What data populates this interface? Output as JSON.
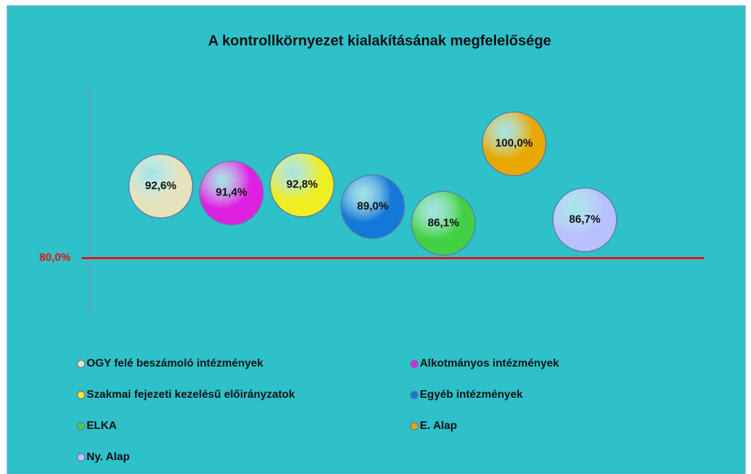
{
  "chart_data": {
    "type": "bubble",
    "title": "A kontrollkörnyezet kialakításának megfelelősége",
    "categories": [
      "OGY felé beszámoló intézmények",
      "Alkotmányos intézmények",
      "Szakmai fejezeti kezelésű előirányzatok",
      "Egyéb intézmények",
      "ELKA",
      "E. Alap",
      "Ny. Alap"
    ],
    "series": [
      {
        "name": "OGY felé beszámoló intézmények",
        "color": "#e6e2bc",
        "values": [
          92.6
        ],
        "value_labels": [
          "92,6%"
        ]
      },
      {
        "name": "Alkotmányos intézmények",
        "color": "#e020e0",
        "values": [
          91.4
        ],
        "value_labels": [
          "91,4%"
        ]
      },
      {
        "name": "Szakmai fejezeti kezelésű előirányzatok",
        "color": "#eeee22",
        "values": [
          92.8
        ],
        "value_labels": [
          "92,8%"
        ]
      },
      {
        "name": "Egyéb intézmények",
        "color": "#1478d8",
        "values": [
          89.0
        ],
        "value_labels": [
          "89,0%"
        ]
      },
      {
        "name": "ELKA",
        "color": "#44d044",
        "values": [
          86.1
        ],
        "value_labels": [
          "86,1%"
        ]
      },
      {
        "name": "E. Alap",
        "color": "#e8a800",
        "values": [
          100.0
        ],
        "value_labels": [
          "100,0%"
        ]
      },
      {
        "name": "Ny. Alap",
        "color": "#b8c0ff",
        "values": [
          86.7
        ],
        "value_labels": [
          "86,7%"
        ]
      }
    ],
    "ylim": [
      70,
      110
    ],
    "reference_line": {
      "value": 80,
      "label": "80,0%",
      "color": "#e81010"
    }
  }
}
